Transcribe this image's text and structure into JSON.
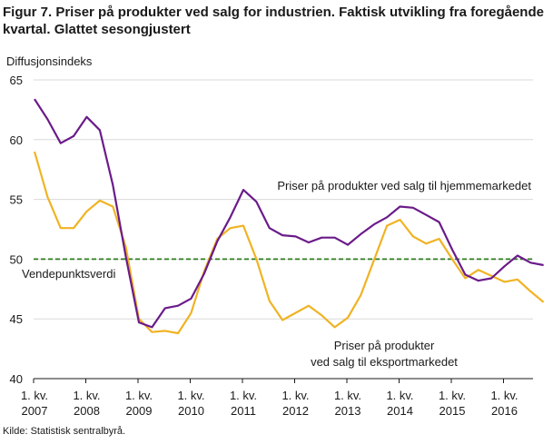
{
  "chart_data": {
    "type": "line",
    "title": "Figur 7. Priser på produkter ved salg for industrien. Faktisk utvikling fra foregående kvartal. Glattet sesongjustert",
    "ylabel": "Diffusjonsindeks",
    "xlabel": "",
    "ylim": [
      40,
      65
    ],
    "yticks": [
      40,
      45,
      50,
      55,
      60,
      65
    ],
    "x_tick_labels": [
      {
        "line1": "1. kv.",
        "line2": "2007"
      },
      {
        "line1": "1. kv.",
        "line2": "2008"
      },
      {
        "line1": "1. kv.",
        "line2": "2009"
      },
      {
        "line1": "1. kv.",
        "line2": "2010"
      },
      {
        "line1": "1. kv.",
        "line2": "2011"
      },
      {
        "line1": "1. kv.",
        "line2": "2012"
      },
      {
        "line1": "1. kv.",
        "line2": "2013"
      },
      {
        "line1": "1. kv.",
        "line2": "2014"
      },
      {
        "line1": "1. kv.",
        "line2": "2015"
      },
      {
        "line1": "1. kv.",
        "line2": "2016"
      }
    ],
    "x": [
      "2007Q1",
      "2007Q2",
      "2007Q3",
      "2007Q4",
      "2008Q1",
      "2008Q2",
      "2008Q3",
      "2008Q4",
      "2009Q1",
      "2009Q2",
      "2009Q3",
      "2009Q4",
      "2010Q1",
      "2010Q2",
      "2010Q3",
      "2010Q4",
      "2011Q1",
      "2011Q2",
      "2011Q3",
      "2011Q4",
      "2012Q1",
      "2012Q2",
      "2012Q3",
      "2012Q4",
      "2013Q1",
      "2013Q2",
      "2013Q3",
      "2013Q4",
      "2014Q1",
      "2014Q2",
      "2014Q3",
      "2014Q4",
      "2015Q1",
      "2015Q2",
      "2015Q3",
      "2015Q4",
      "2016Q1",
      "2016Q2",
      "2016Q3",
      "2016Q4"
    ],
    "series": [
      {
        "name": "Priser på produkter ved salg til hjemmemarkedet",
        "color": "#6a1b8a",
        "values": [
          63.4,
          61.7,
          59.7,
          60.3,
          61.9,
          60.8,
          56.2,
          50.2,
          44.7,
          44.3,
          45.9,
          46.1,
          46.7,
          48.8,
          51.5,
          53.5,
          55.8,
          54.8,
          52.6,
          52.0,
          51.9,
          51.4,
          51.8,
          51.8,
          51.2,
          52.1,
          52.9,
          53.5,
          54.4,
          54.3,
          53.7,
          53.1,
          50.8,
          48.7,
          48.2,
          48.4,
          49.4,
          50.3,
          49.7,
          49.5
        ]
      },
      {
        "name": "Priser på produkter ved salg til eksportmarkedet",
        "color": "#f0b323",
        "values": [
          59.0,
          55.2,
          52.6,
          52.6,
          54.0,
          54.9,
          54.4,
          51.0,
          45.0,
          43.9,
          44.0,
          43.8,
          45.5,
          49.0,
          51.7,
          52.6,
          52.8,
          50.0,
          46.5,
          44.9,
          45.5,
          46.1,
          45.3,
          44.3,
          45.1,
          47.0,
          49.9,
          52.8,
          53.3,
          51.9,
          51.3,
          51.7,
          50.0,
          48.4,
          49.1,
          48.6,
          48.1,
          48.3,
          47.3,
          46.4
        ]
      }
    ],
    "reference_line": {
      "value": 50,
      "label": "Vendepunktsverdi",
      "color": "#2e7d1e",
      "style": "dashed"
    },
    "annotations": {
      "domestic": "Priser  på produkter ved salg til hjemmemarkedet",
      "export_line1": "Priser  på produkter",
      "export_line2": "ved salg til eksportmarkedet"
    },
    "grid": "horizontal",
    "legend": "none"
  },
  "source": "Kilde: Statistisk sentralbyrå."
}
